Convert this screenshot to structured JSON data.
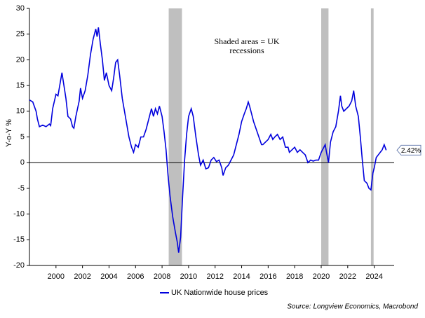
{
  "chart_data": {
    "type": "line",
    "y_label": "Y-o-Y %",
    "annotation": [
      "Shaded areas = UK",
      "recessions"
    ],
    "source": "Source: Longview Economics, Macrobond",
    "x": [
      1998.0,
      1998.25,
      1998.5,
      1998.6,
      1998.75,
      1999.0,
      1999.25,
      1999.5,
      1999.6,
      1999.75,
      2000.0,
      2000.15,
      2000.35,
      2000.45,
      2000.6,
      2000.75,
      2000.9,
      2001.1,
      2001.25,
      2001.35,
      2001.5,
      2001.75,
      2001.85,
      2002.0,
      2002.2,
      2002.4,
      2002.6,
      2002.8,
      2003.0,
      2003.1,
      2003.2,
      2003.35,
      2003.5,
      2003.65,
      2003.8,
      2004.0,
      2004.2,
      2004.35,
      2004.5,
      2004.65,
      2004.8,
      2005.0,
      2005.3,
      2005.5,
      2005.7,
      2005.85,
      2006.0,
      2006.2,
      2006.4,
      2006.6,
      2006.8,
      2007.0,
      2007.2,
      2007.35,
      2007.5,
      2007.65,
      2007.8,
      2008.0,
      2008.15,
      2008.3,
      2008.45,
      2008.6,
      2008.8,
      2009.0,
      2009.15,
      2009.25,
      2009.4,
      2009.55,
      2009.7,
      2009.85,
      2010.0,
      2010.2,
      2010.35,
      2010.55,
      2010.75,
      2010.9,
      2011.1,
      2011.3,
      2011.5,
      2011.7,
      2011.9,
      2012.1,
      2012.3,
      2012.5,
      2012.6,
      2012.8,
      2013.0,
      2013.2,
      2013.4,
      2013.6,
      2013.8,
      2014.0,
      2014.2,
      2014.35,
      2014.5,
      2014.6,
      2014.75,
      2014.9,
      2015.1,
      2015.3,
      2015.5,
      2015.6,
      2015.8,
      2016.0,
      2016.2,
      2016.35,
      2016.5,
      2016.7,
      2016.9,
      2017.1,
      2017.3,
      2017.5,
      2017.6,
      2017.8,
      2018.0,
      2018.2,
      2018.4,
      2018.6,
      2018.8,
      2019.0,
      2019.2,
      2019.4,
      2019.6,
      2019.8,
      2020.0,
      2020.3,
      2020.4,
      2020.55,
      2020.7,
      2020.9,
      2021.1,
      2021.3,
      2021.45,
      2021.55,
      2021.7,
      2021.9,
      2022.1,
      2022.3,
      2022.45,
      2022.6,
      2022.8,
      2022.95,
      2023.1,
      2023.25,
      2023.45,
      2023.6,
      2023.75,
      2023.9,
      2024.0,
      2024.15,
      2024.3,
      2024.45,
      2024.6,
      2024.75,
      2024.9
    ],
    "series": [
      {
        "name": "UK Nationwide house prices",
        "color": "#0000dd",
        "values": [
          12.2,
          11.8,
          10.0,
          8.5,
          7.0,
          7.3,
          7.0,
          7.5,
          7.2,
          10.5,
          13.3,
          13.0,
          16.0,
          17.5,
          15.0,
          12.5,
          9.0,
          8.5,
          7.0,
          6.7,
          9.0,
          12.0,
          14.5,
          12.5,
          14.0,
          17.0,
          21.0,
          24.0,
          26.0,
          24.5,
          26.3,
          23.0,
          20.0,
          16.0,
          17.5,
          15.0,
          14.0,
          16.5,
          19.5,
          20.0,
          17.0,
          12.5,
          8.0,
          5.0,
          3.0,
          2.0,
          3.5,
          3.0,
          5.0,
          5.0,
          6.5,
          8.5,
          10.5,
          9.0,
          10.5,
          9.5,
          11.0,
          9.0,
          6.0,
          2.5,
          -2.5,
          -6.5,
          -10.5,
          -13.5,
          -15.5,
          -17.5,
          -14.5,
          -6.5,
          0.5,
          5.5,
          9.0,
          10.5,
          9.0,
          5.0,
          1.5,
          -0.5,
          0.5,
          -1.2,
          -1.0,
          0.5,
          1.0,
          0.2,
          0.5,
          -1.0,
          -2.5,
          -1.0,
          -0.5,
          0.5,
          1.5,
          3.5,
          5.5,
          8.0,
          9.5,
          10.5,
          11.8,
          11.0,
          9.5,
          8.0,
          6.5,
          5.0,
          3.5,
          3.5,
          4.0,
          4.5,
          5.5,
          4.5,
          5.0,
          5.5,
          4.5,
          5.0,
          3.0,
          3.0,
          2.0,
          2.5,
          3.0,
          2.0,
          2.5,
          2.0,
          1.5,
          0.0,
          0.5,
          0.3,
          0.5,
          0.5,
          2.0,
          3.5,
          2.0,
          0.0,
          4.0,
          6.0,
          7.0,
          10.0,
          13.0,
          11.0,
          10.0,
          10.5,
          11.0,
          12.0,
          14.0,
          11.0,
          9.0,
          5.0,
          0.5,
          -3.5,
          -4.0,
          -5.0,
          -5.3,
          -2.0,
          -1.0,
          1.0,
          1.5,
          2.0,
          2.5,
          3.5,
          2.42
        ]
      }
    ],
    "end_label": {
      "value": 2.42,
      "label": "2.42%"
    },
    "recessions": [
      [
        2008.5,
        2009.5
      ],
      [
        2020.0,
        2020.55
      ],
      [
        2023.75,
        2023.95
      ]
    ],
    "recession_color": "#bfbfbf",
    "hline": 0,
    "xlim": [
      1998,
      2025.5
    ],
    "xticks": [
      2000,
      2002,
      2004,
      2006,
      2008,
      2010,
      2012,
      2014,
      2016,
      2018,
      2020,
      2022,
      2024
    ],
    "ylim": [
      -20,
      30
    ],
    "yticks": [
      -20,
      -15,
      -10,
      -5,
      0,
      5,
      10,
      15,
      20,
      25,
      30
    ]
  }
}
